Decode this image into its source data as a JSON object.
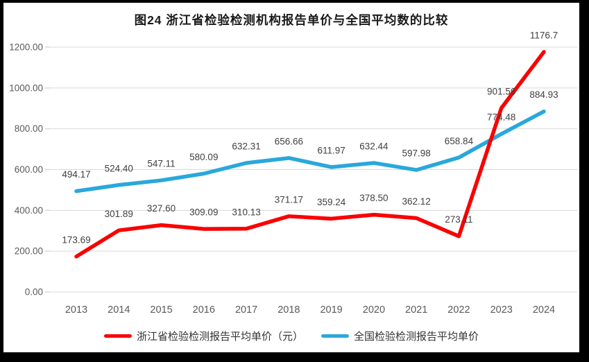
{
  "title": "图24  浙江省检验检测机构报告单价与全国平均数的比较",
  "chart_data": {
    "type": "line",
    "categories": [
      "2013",
      "2014",
      "2015",
      "2016",
      "2017",
      "2018",
      "2019",
      "2020",
      "2021",
      "2022",
      "2023",
      "2024"
    ],
    "series": [
      {
        "name": "浙江省检验检测报告平均单价（元）",
        "color": "#fa0000",
        "values": [
          173.69,
          301.89,
          327.6,
          309.09,
          310.13,
          371.17,
          359.24,
          378.5,
          362.12,
          273.11,
          901.56,
          1176.7
        ],
        "labels": [
          "173.69",
          "301.89",
          "327.60",
          "309.09",
          "310.13",
          "371.17",
          "359.24",
          "378.50",
          "362.12",
          "273.11",
          "901.56",
          "1176.7"
        ]
      },
      {
        "name": "全国检验检测报告平均单价",
        "color": "#29a8dc",
        "values": [
          494.17,
          524.4,
          547.11,
          580.09,
          632.31,
          656.66,
          611.97,
          632.44,
          597.98,
          658.84,
          774.48,
          884.93
        ],
        "labels": [
          "494.17",
          "524.40",
          "547.11",
          "580.09",
          "632.31",
          "656.66",
          "611.97",
          "632.44",
          "597.98",
          "658.84",
          "774.48",
          "884.93"
        ]
      }
    ],
    "y_ticks": [
      {
        "value": 0,
        "label": "0.00"
      },
      {
        "value": 200,
        "label": "200.00"
      },
      {
        "value": 400,
        "label": "400.00"
      },
      {
        "value": 600,
        "label": "600.00"
      },
      {
        "value": 800,
        "label": "800.00"
      },
      {
        "value": 1000,
        "label": "1000.00"
      },
      {
        "value": 1200,
        "label": "1200.00"
      }
    ],
    "ylim": [
      0,
      1200
    ],
    "grid": true,
    "legend_position": "bottom"
  },
  "colors": {
    "grid": "#d9d9d9",
    "axis_text": "#595959",
    "data_label_text": "#404040",
    "frame_border": "#000000"
  }
}
